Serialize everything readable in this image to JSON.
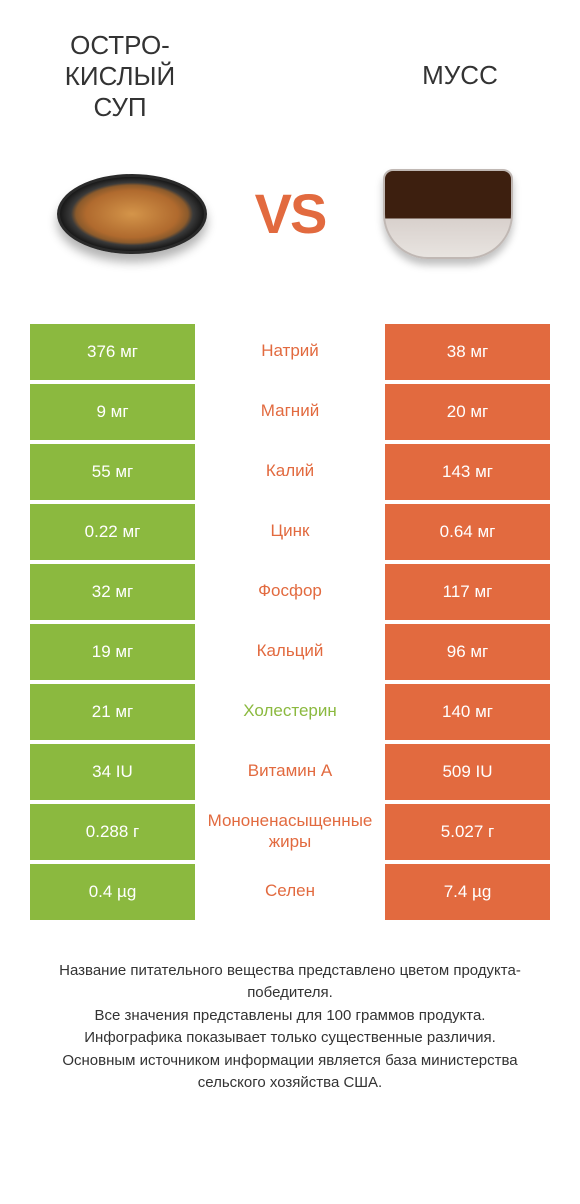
{
  "titles": {
    "left": "ОСТРО-\nКИСЛЫЙ\nСУП",
    "right": "МУСС",
    "vs": "VS"
  },
  "colors": {
    "green_bg": "#8bb93f",
    "orange_bg": "#e26a3f",
    "txt": "#333333",
    "white": "#ffffff"
  },
  "font": {
    "title_size": 26,
    "vs_size": 56,
    "cell_size": 17,
    "footer_size": 15
  },
  "rows": [
    {
      "left": "376 мг",
      "mid": "Натрий",
      "right": "38 мг",
      "left_col": "green",
      "right_col": "orange",
      "mid_col": "orange"
    },
    {
      "left": "9 мг",
      "mid": "Магний",
      "right": "20 мг",
      "left_col": "green",
      "right_col": "orange",
      "mid_col": "orange"
    },
    {
      "left": "55 мг",
      "mid": "Калий",
      "right": "143 мг",
      "left_col": "green",
      "right_col": "orange",
      "mid_col": "orange"
    },
    {
      "left": "0.22 мг",
      "mid": "Цинк",
      "right": "0.64 мг",
      "left_col": "green",
      "right_col": "orange",
      "mid_col": "orange"
    },
    {
      "left": "32 мг",
      "mid": "Фосфор",
      "right": "117 мг",
      "left_col": "green",
      "right_col": "orange",
      "mid_col": "orange"
    },
    {
      "left": "19 мг",
      "mid": "Кальций",
      "right": "96 мг",
      "left_col": "green",
      "right_col": "orange",
      "mid_col": "orange"
    },
    {
      "left": "21 мг",
      "mid": "Холестерин",
      "right": "140 мг",
      "left_col": "green",
      "right_col": "orange",
      "mid_col": "green"
    },
    {
      "left": "34 IU",
      "mid": "Витамин A",
      "right": "509 IU",
      "left_col": "green",
      "right_col": "orange",
      "mid_col": "orange"
    },
    {
      "left": "0.288 г",
      "mid": "Мононенасыщенные жиры",
      "right": "5.027 г",
      "left_col": "green",
      "right_col": "orange",
      "mid_col": "orange"
    },
    {
      "left": "0.4 µg",
      "mid": "Селен",
      "right": "7.4 µg",
      "left_col": "green",
      "right_col": "orange",
      "mid_col": "orange"
    }
  ],
  "footer": {
    "line1": "Название питательного вещества представлено цветом продукта-победителя.",
    "line2": "Все значения представлены для 100 граммов продукта.",
    "line3": "Инфографика показывает только существенные различия.",
    "line4": "Основным источником информации является база министерства сельского хозяйства США."
  }
}
